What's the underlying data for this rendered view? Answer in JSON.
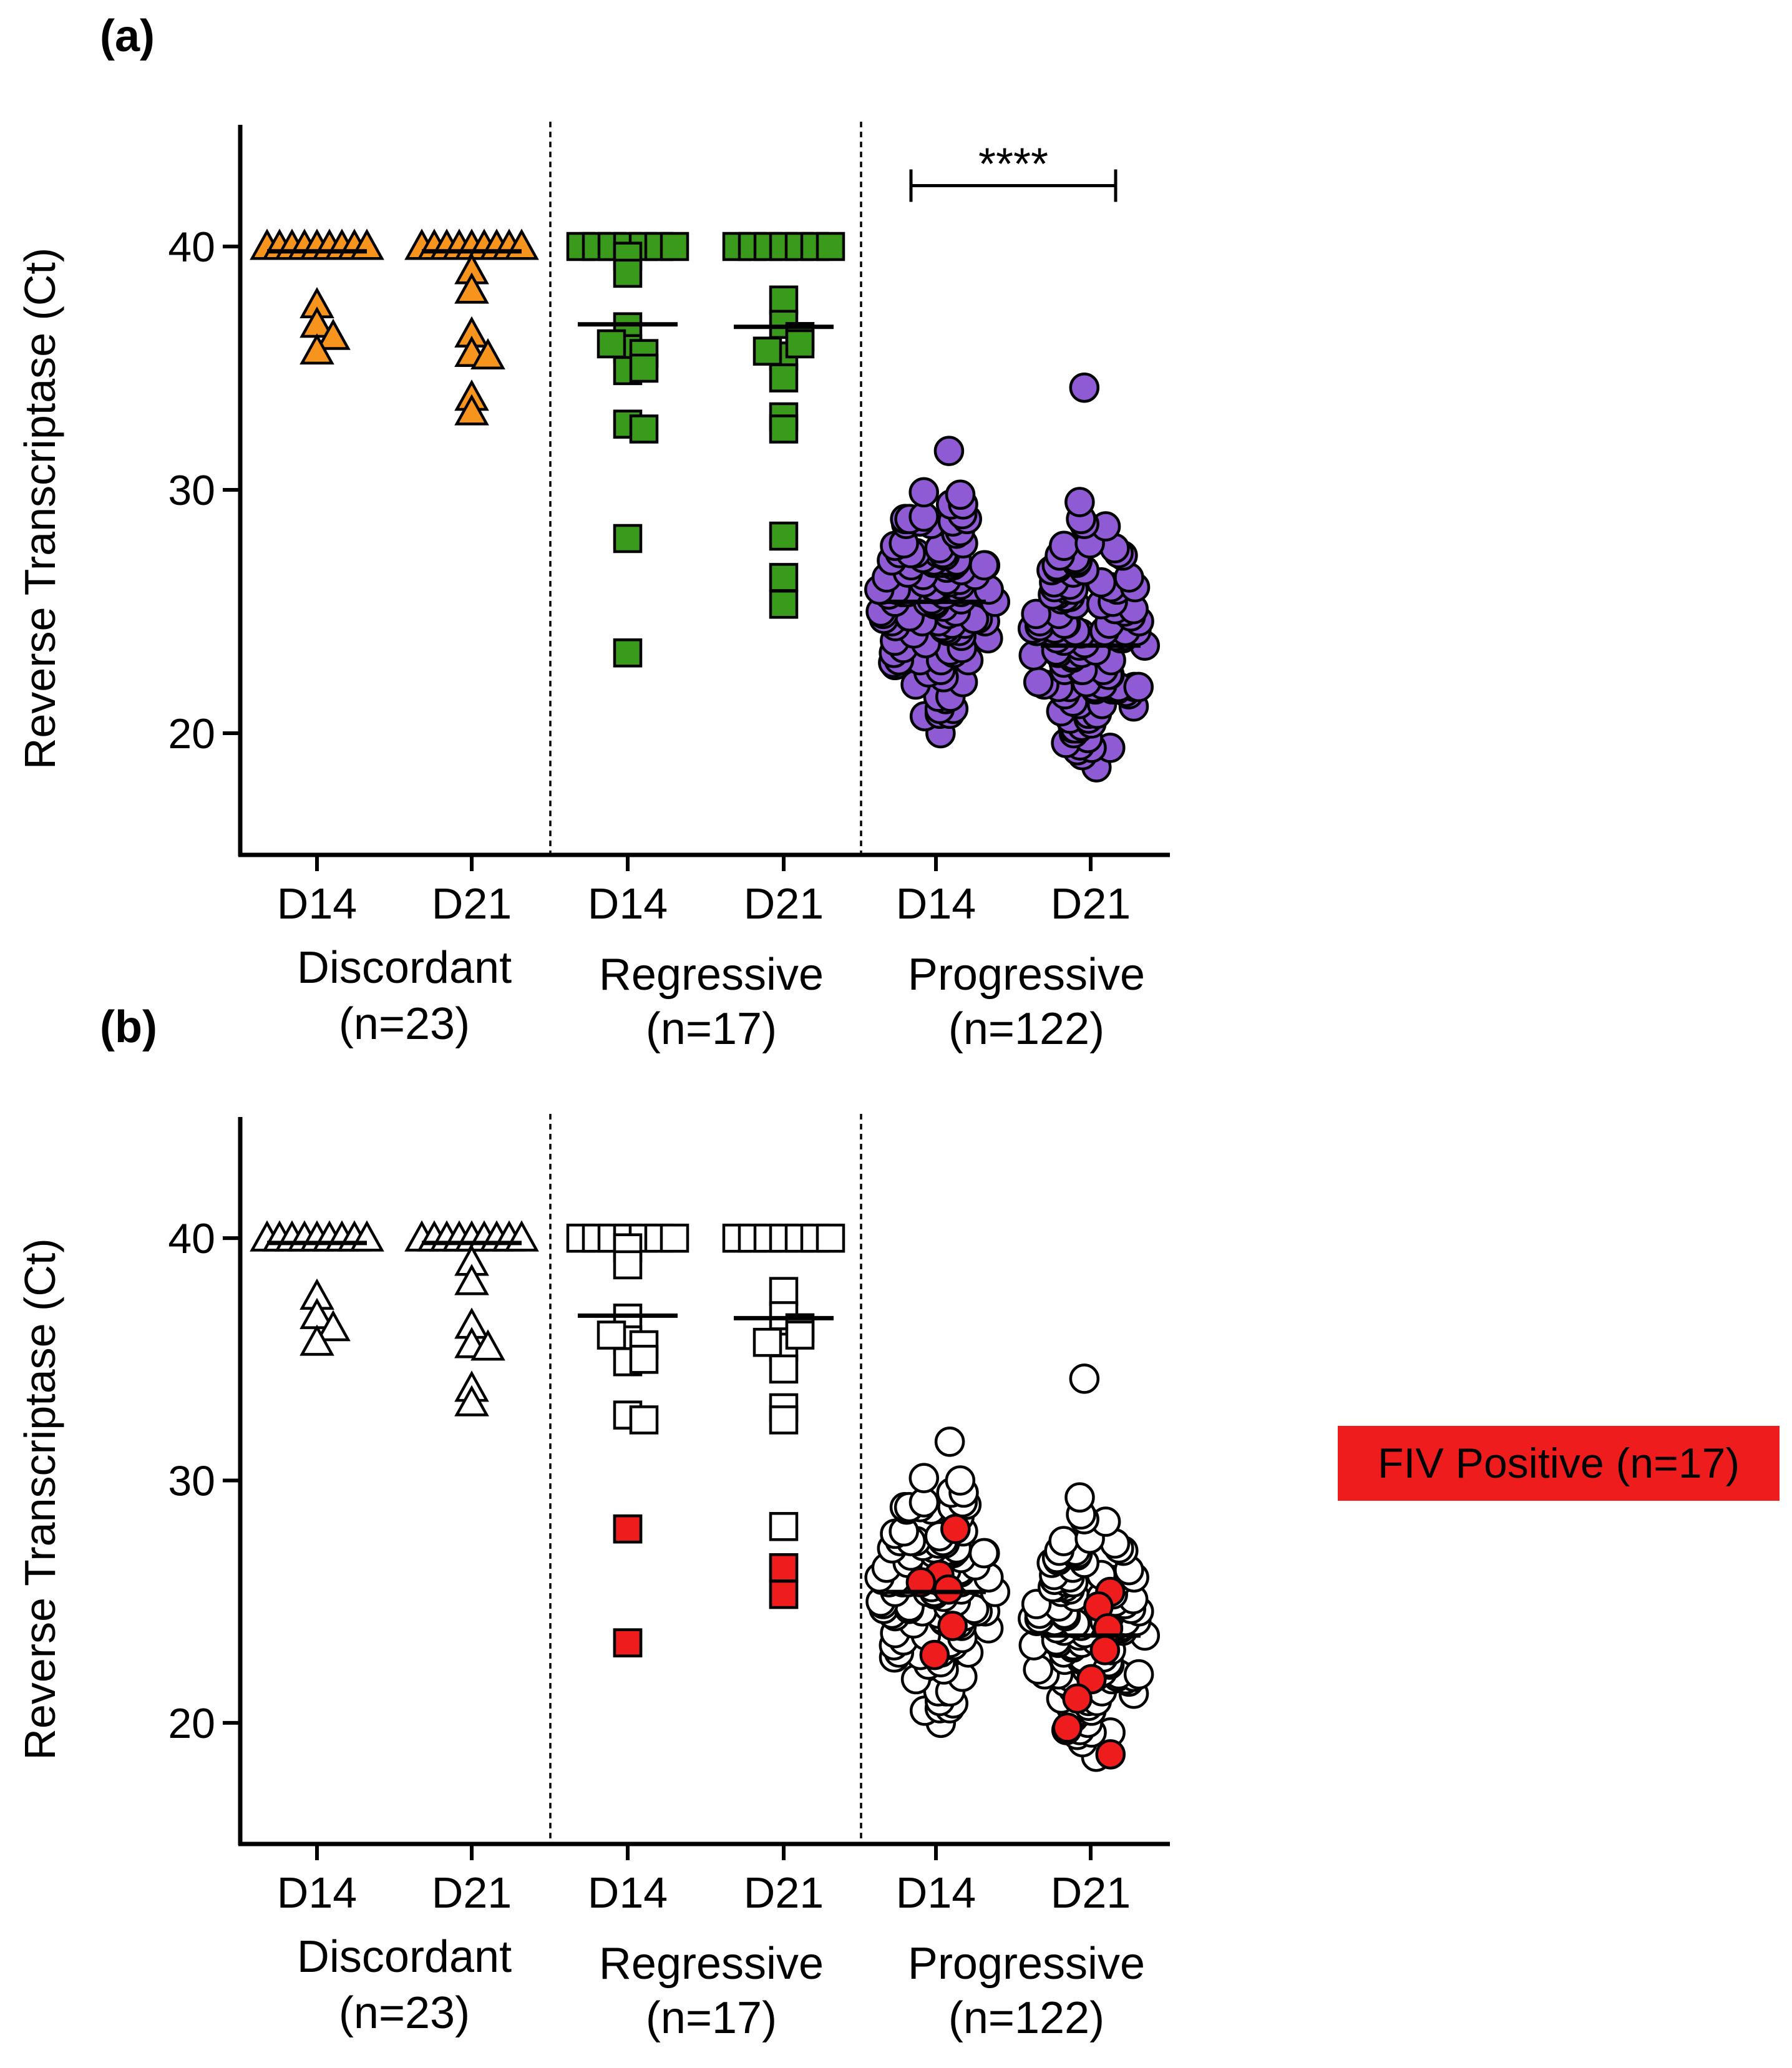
{
  "chart_data": [
    {
      "panel_label": "(a)",
      "type": "scatter",
      "ylabel": "Reverse Transcriptase (Ct)",
      "ylim": [
        15,
        45
      ],
      "yticks": [
        20,
        30,
        40
      ],
      "xticks": [
        "D14",
        "D21",
        "D14",
        "D21",
        "D14",
        "D21"
      ],
      "groups": [
        {
          "name": "Discordant",
          "n_label": "(n=23)"
        },
        {
          "name": "Regressive",
          "n_label": "(n=17)"
        },
        {
          "name": "Progressive",
          "n_label": "(n=122)"
        }
      ],
      "significance": {
        "between": [
          "Progressive D14",
          "Progressive D21"
        ],
        "label": "****"
      },
      "series": [
        {
          "group": "Discordant",
          "day": "D14",
          "marker": "triangle",
          "color": "#f7941d",
          "mean": 39.8,
          "n_at_40": 19,
          "values_below_40": [
            37.6,
            36.8,
            36.3,
            35.7
          ]
        },
        {
          "group": "Discordant",
          "day": "D21",
          "marker": "triangle",
          "color": "#f7941d",
          "mean": 39.8,
          "n_at_40": 16,
          "values_below_40": [
            39.0,
            38.2,
            36.4,
            35.6,
            35.5,
            33.8,
            33.2
          ]
        },
        {
          "group": "Regressive",
          "day": "D14",
          "marker": "square",
          "color": "#3a9a1c",
          "mean": 36.8,
          "n_at_40": 5,
          "values_below_40": [
            39.6,
            38.9,
            36.7,
            35.8,
            35.6,
            34.9,
            32.7,
            32.5,
            28.0,
            23.3,
            35.0,
            36.0
          ]
        },
        {
          "group": "Regressive",
          "day": "D21",
          "marker": "square",
          "color": "#3a9a1c",
          "mean": 36.7,
          "n_at_40": 5,
          "values_below_40": [
            37.8,
            36.8,
            36.3,
            35.5,
            34.6,
            33.0,
            32.5,
            28.1,
            26.4,
            25.3,
            36.0,
            35.7
          ]
        },
        {
          "group": "Progressive",
          "day": "D14",
          "marker": "circle",
          "color": "#8f5bd4",
          "mean": 25.4,
          "n": 122,
          "spread": "min 20.0, max 31.6, sd 2.4"
        },
        {
          "group": "Progressive",
          "day": "D21",
          "marker": "circle",
          "color": "#8f5bd4",
          "mean": 23.6,
          "n": 122,
          "spread": "min 18.6, max 34.2, sd 2.6"
        }
      ]
    },
    {
      "panel_label": "(b)",
      "type": "scatter",
      "ylabel": "Reverse Transcriptase (Ct)",
      "ylim": [
        15,
        45
      ],
      "yticks": [
        20,
        30,
        40
      ],
      "xticks": [
        "D14",
        "D21",
        "D14",
        "D21",
        "D14",
        "D21"
      ],
      "groups": [
        {
          "name": "Discordant",
          "n_label": "(n=23)"
        },
        {
          "name": "Regressive",
          "n_label": "(n=17)"
        },
        {
          "name": "Progressive",
          "n_label": "(n=122)"
        }
      ],
      "highlight": {
        "label": "FIV Positive (n=17)",
        "color": "#ee1c1c"
      },
      "series": [
        {
          "group": "Discordant",
          "day": "D14",
          "marker": "triangle",
          "color": "#ffffff",
          "mean": 39.8,
          "n_at_40": 19,
          "values_below_40": [
            37.6,
            36.8,
            36.3,
            35.7
          ]
        },
        {
          "group": "Discordant",
          "day": "D21",
          "marker": "triangle",
          "color": "#ffffff",
          "mean": 39.8,
          "n_at_40": 16,
          "values_below_40": [
            39.0,
            38.2,
            36.4,
            35.6,
            35.5,
            33.8,
            33.2
          ]
        },
        {
          "group": "Regressive",
          "day": "D14",
          "marker": "square",
          "color": "#ffffff",
          "mean": 36.8,
          "n_at_40": 5,
          "values_below_40": [
            39.6,
            38.9,
            36.7,
            35.8,
            35.6,
            34.9,
            32.7,
            32.5,
            28.0,
            23.3,
            35.0,
            36.0
          ],
          "highlighted_values": [
            28.0,
            23.3
          ]
        },
        {
          "group": "Regressive",
          "day": "D21",
          "marker": "square",
          "color": "#ffffff",
          "mean": 36.7,
          "n_at_40": 5,
          "values_below_40": [
            37.8,
            36.8,
            36.3,
            35.5,
            34.6,
            33.0,
            32.5,
            28.1,
            26.4,
            25.3,
            36.0,
            35.7
          ],
          "highlighted_values": [
            26.4,
            25.3
          ]
        },
        {
          "group": "Progressive",
          "day": "D14",
          "marker": "circle",
          "color": "#ffffff",
          "mean": 25.4,
          "n": 122,
          "highlighted_values": [
            28.0,
            26.1,
            25.8,
            25.5,
            24.0,
            22.8
          ]
        },
        {
          "group": "Progressive",
          "day": "D21",
          "marker": "circle",
          "color": "#ffffff",
          "mean": 23.6,
          "n": 122,
          "highlighted_values": [
            25.4,
            24.8,
            23.9,
            23.0,
            21.8,
            21.0,
            19.8,
            18.7
          ]
        }
      ]
    }
  ]
}
